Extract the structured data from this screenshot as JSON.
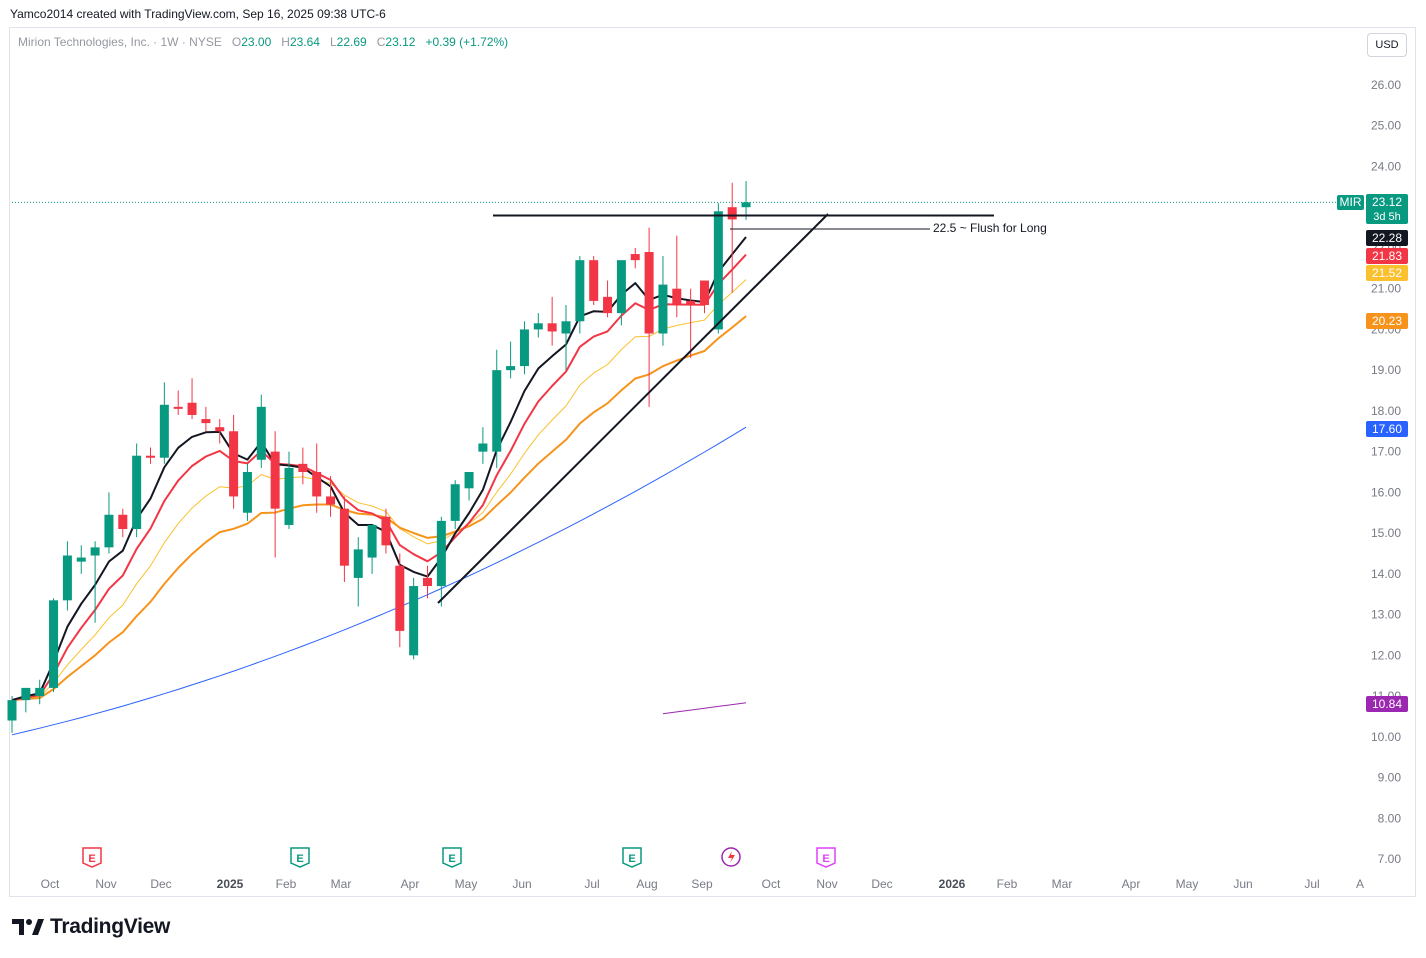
{
  "header": {
    "credit": "Yamco2014 created with TradingView.com, Sep 16, 2025 09:38 UTC-6"
  },
  "legend": {
    "title": "Mirion Technologies, Inc. · 1W · NYSE",
    "open_label": "O",
    "open": "23.00",
    "high_label": "H",
    "high": "23.64",
    "low_label": "L",
    "low": "22.69",
    "close_label": "C",
    "close": "23.12",
    "change": "+0.39 (+1.72%)"
  },
  "currency_button": "USD",
  "brand": {
    "name": "TradingView"
  },
  "colors": {
    "up": "#089981",
    "down": "#f23645",
    "ema_black": "#131722",
    "ema_red": "#f23645",
    "ema_yellow": "#fbc02d",
    "ema_orange": "#f7931a",
    "sma_blue": "#2962ff",
    "sma_purple": "#9c27b0"
  },
  "chart_data": {
    "type": "candlestick",
    "symbol": "MIR",
    "interval": "1W",
    "y_axis": {
      "ticks": [
        "7.00",
        "8.00",
        "9.00",
        "10.00",
        "11.00",
        "12.00",
        "13.00",
        "14.00",
        "15.00",
        "16.00",
        "17.00",
        "18.00",
        "19.00",
        "20.00",
        "21.00",
        "22.00",
        "23.00",
        "24.00",
        "25.00",
        "26.00"
      ],
      "range": [
        6.6,
        26.9
      ]
    },
    "x_axis": {
      "ticks": [
        "Oct",
        "Nov",
        "Dec",
        "2025",
        "Feb",
        "Mar",
        "Apr",
        "May",
        "Jun",
        "Jul",
        "Aug",
        "Sep",
        "Oct",
        "Nov",
        "Dec",
        "2026",
        "Feb",
        "Mar",
        "Apr",
        "May",
        "Jun",
        "Jul",
        "A"
      ]
    },
    "candles": [
      {
        "o": 10.4,
        "h": 11.0,
        "l": 10.1,
        "c": 10.9
      },
      {
        "o": 10.9,
        "h": 11.2,
        "l": 10.6,
        "c": 11.2
      },
      {
        "o": 11.0,
        "h": 11.4,
        "l": 10.8,
        "c": 11.2
      },
      {
        "o": 11.2,
        "h": 13.4,
        "l": 11.1,
        "c": 13.35
      },
      {
        "o": 13.35,
        "h": 14.8,
        "l": 13.1,
        "c": 14.45
      },
      {
        "o": 14.3,
        "h": 14.7,
        "l": 14.0,
        "c": 14.4
      },
      {
        "o": 14.45,
        "h": 14.8,
        "l": 12.8,
        "c": 14.65
      },
      {
        "o": 14.65,
        "h": 16.0,
        "l": 14.5,
        "c": 15.45
      },
      {
        "o": 15.45,
        "h": 15.6,
        "l": 14.9,
        "c": 15.1
      },
      {
        "o": 15.1,
        "h": 17.2,
        "l": 14.9,
        "c": 16.9
      },
      {
        "o": 16.9,
        "h": 17.1,
        "l": 16.7,
        "c": 16.85
      },
      {
        "o": 16.85,
        "h": 18.7,
        "l": 16.7,
        "c": 18.15
      },
      {
        "o": 18.1,
        "h": 18.5,
        "l": 17.9,
        "c": 18.05
      },
      {
        "o": 18.2,
        "h": 18.8,
        "l": 17.8,
        "c": 17.9
      },
      {
        "o": 17.8,
        "h": 18.1,
        "l": 17.5,
        "c": 17.7
      },
      {
        "o": 17.6,
        "h": 17.8,
        "l": 17.2,
        "c": 17.5
      },
      {
        "o": 17.5,
        "h": 17.9,
        "l": 15.6,
        "c": 15.9
      },
      {
        "o": 15.5,
        "h": 16.7,
        "l": 15.3,
        "c": 16.5
      },
      {
        "o": 16.8,
        "h": 18.4,
        "l": 16.6,
        "c": 18.1
      },
      {
        "o": 17.0,
        "h": 17.5,
        "l": 14.4,
        "c": 15.6
      },
      {
        "o": 15.2,
        "h": 17.0,
        "l": 15.1,
        "c": 16.6
      },
      {
        "o": 16.7,
        "h": 17.1,
        "l": 16.2,
        "c": 16.5
      },
      {
        "o": 16.5,
        "h": 17.2,
        "l": 15.5,
        "c": 15.9
      },
      {
        "o": 15.9,
        "h": 16.4,
        "l": 15.4,
        "c": 15.7
      },
      {
        "o": 15.6,
        "h": 15.9,
        "l": 13.8,
        "c": 14.2
      },
      {
        "o": 13.9,
        "h": 14.9,
        "l": 13.2,
        "c": 14.6
      },
      {
        "o": 14.4,
        "h": 15.2,
        "l": 14.0,
        "c": 15.2
      },
      {
        "o": 15.4,
        "h": 15.6,
        "l": 14.5,
        "c": 14.7
      },
      {
        "o": 14.2,
        "h": 14.5,
        "l": 12.2,
        "c": 12.6
      },
      {
        "o": 12.0,
        "h": 13.9,
        "l": 11.9,
        "c": 13.7
      },
      {
        "o": 13.9,
        "h": 14.2,
        "l": 13.4,
        "c": 13.7
      },
      {
        "o": 13.7,
        "h": 15.4,
        "l": 13.2,
        "c": 15.3
      },
      {
        "o": 15.3,
        "h": 16.3,
        "l": 15.1,
        "c": 16.2
      },
      {
        "o": 16.1,
        "h": 16.5,
        "l": 15.8,
        "c": 16.5
      },
      {
        "o": 17.0,
        "h": 17.6,
        "l": 16.7,
        "c": 17.2
      },
      {
        "o": 17.0,
        "h": 19.5,
        "l": 16.6,
        "c": 19.0
      },
      {
        "o": 19.0,
        "h": 19.7,
        "l": 18.8,
        "c": 19.1
      },
      {
        "o": 19.1,
        "h": 20.2,
        "l": 18.9,
        "c": 20.0
      },
      {
        "o": 20.0,
        "h": 20.4,
        "l": 19.8,
        "c": 20.15
      },
      {
        "o": 20.15,
        "h": 20.8,
        "l": 19.6,
        "c": 19.95
      },
      {
        "o": 19.9,
        "h": 20.6,
        "l": 19.0,
        "c": 20.2
      },
      {
        "o": 20.2,
        "h": 21.8,
        "l": 19.9,
        "c": 21.7
      },
      {
        "o": 21.7,
        "h": 21.8,
        "l": 20.6,
        "c": 20.7
      },
      {
        "o": 20.8,
        "h": 21.2,
        "l": 20.3,
        "c": 20.4
      },
      {
        "o": 20.4,
        "h": 21.5,
        "l": 20.1,
        "c": 21.7
      },
      {
        "o": 21.85,
        "h": 22.0,
        "l": 21.5,
        "c": 21.7
      },
      {
        "o": 21.9,
        "h": 22.5,
        "l": 18.1,
        "c": 19.9
      },
      {
        "o": 19.9,
        "h": 21.8,
        "l": 19.6,
        "c": 21.1
      },
      {
        "o": 21.0,
        "h": 22.3,
        "l": 20.3,
        "c": 20.6
      },
      {
        "o": 20.7,
        "h": 21.0,
        "l": 19.3,
        "c": 20.6
      },
      {
        "o": 21.2,
        "h": 21.2,
        "l": 20.4,
        "c": 20.6
      },
      {
        "o": 20.0,
        "h": 23.1,
        "l": 19.9,
        "c": 22.9
      },
      {
        "o": 23.0,
        "h": 23.6,
        "l": 20.9,
        "c": 22.7
      },
      {
        "o": 23.0,
        "h": 23.64,
        "l": 22.69,
        "c": 23.12
      }
    ],
    "price_labels": [
      {
        "text": "MIR",
        "value": 23.12,
        "color": "#089981"
      },
      {
        "text": "23.12",
        "value": 23.12,
        "color": "#089981"
      },
      {
        "text": "3d 5h",
        "value": 23.12,
        "color": "#089981"
      },
      {
        "text": "22.28",
        "value": 22.28,
        "color": "#131722"
      },
      {
        "text": "21.83",
        "value": 21.83,
        "color": "#f23645"
      },
      {
        "text": "21.52",
        "value": 21.52,
        "color": "#fbc02d"
      },
      {
        "text": "20.23",
        "value": 20.23,
        "color": "#f7931a"
      },
      {
        "text": "17.60",
        "value": 17.6,
        "color": "#2962ff"
      },
      {
        "text": "10.84",
        "value": 10.84,
        "color": "#9c27b0"
      }
    ],
    "annotations": [
      {
        "text": "22.5 ~ Flush for Long",
        "value": 22.5
      }
    ]
  }
}
